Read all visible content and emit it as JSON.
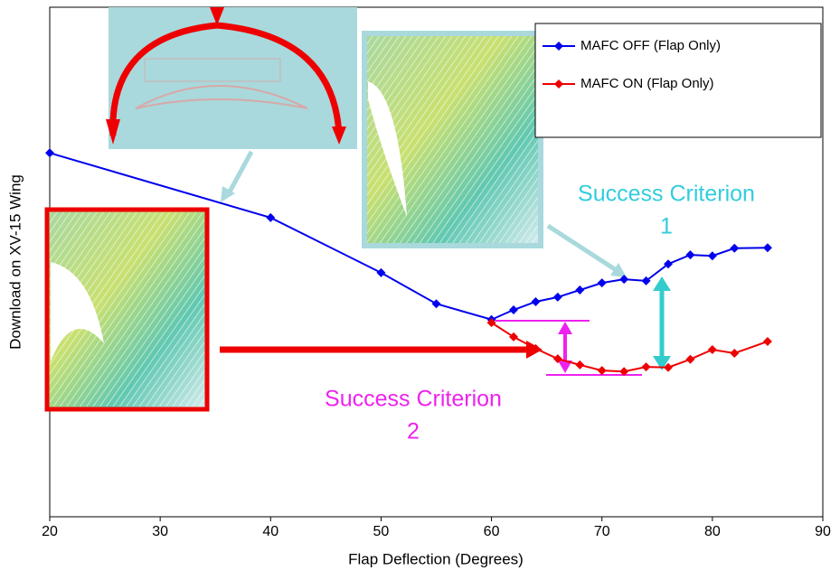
{
  "chart_data": {
    "type": "line",
    "x_label": "Flap Deflection (Degrees)",
    "y_label": "Download on XV-15 Wing",
    "xlim": [
      20,
      90
    ],
    "xticks": [
      20,
      30,
      40,
      50,
      60,
      70,
      80,
      90
    ],
    "ylim": [
      0,
      100
    ],
    "legend": "top-right",
    "series": [
      {
        "name": "MAFC OFF (Flap Only)",
        "color": "#0000ee",
        "x": [
          20,
          40,
          50,
          55,
          60,
          62,
          64,
          66,
          68,
          70,
          72,
          74,
          76,
          78,
          80,
          82,
          85
        ],
        "values": [
          71.4,
          58.7,
          47.9,
          41.8,
          38.7,
          40.6,
          42.2,
          43.1,
          44.5,
          45.9,
          46.6,
          46.3,
          49.6,
          51.4,
          51.2,
          52.7,
          52.8
        ]
      },
      {
        "name": "MAFC ON (Flap Only)",
        "color": "#ee0000",
        "x": [
          60,
          62,
          64,
          66,
          68,
          70,
          72,
          74,
          76,
          78,
          80,
          82,
          85
        ],
        "values": [
          38.1,
          35.3,
          33.0,
          31.0,
          29.8,
          28.7,
          28.5,
          29.4,
          29.3,
          30.9,
          32.8,
          32.1,
          34.4
        ]
      }
    ],
    "annotations": [
      {
        "lines": [
          "Success Criterion",
          "1"
        ],
        "color": "#33ccdd"
      },
      {
        "lines": [
          "Success Criterion",
          "2"
        ],
        "color": "#ee22ee"
      }
    ]
  }
}
